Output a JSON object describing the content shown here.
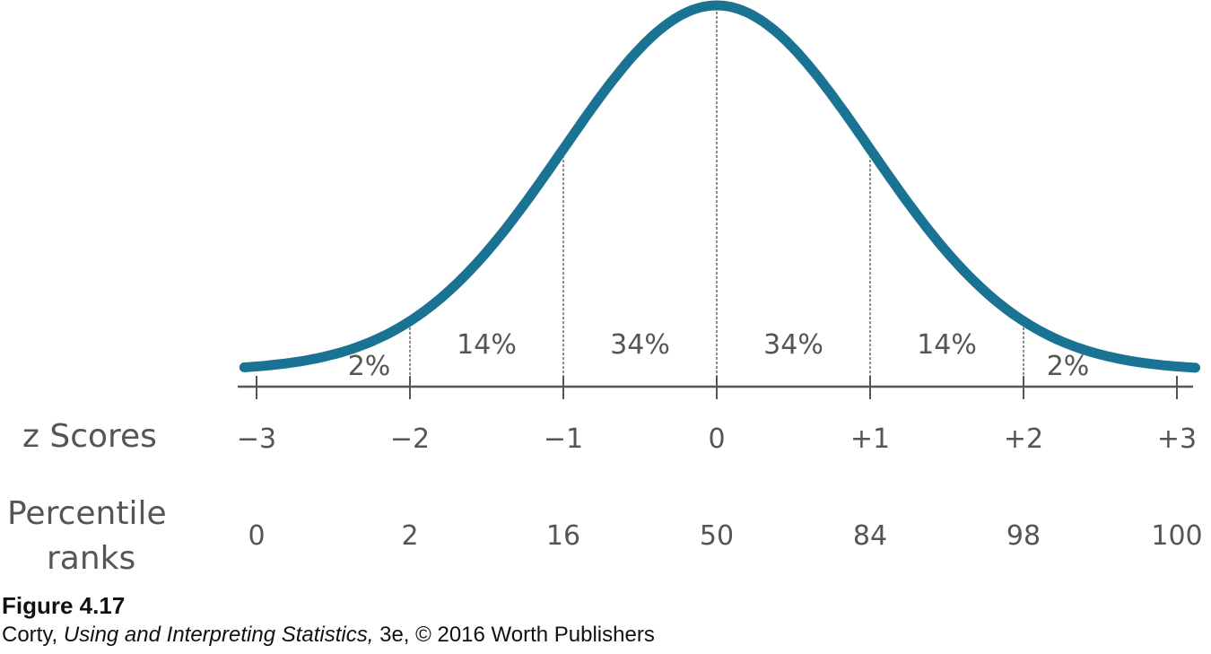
{
  "chart_data": {
    "type": "line",
    "curve": "normal distribution",
    "curve_color": "#1b7393",
    "x": [
      -3,
      -2,
      -1,
      0,
      1,
      2,
      3
    ],
    "x_tick_labels": [
      "−3",
      "−2",
      "−1",
      "0",
      "+1",
      "+2",
      "+3"
    ],
    "percentile_ranks": [
      "0",
      "2",
      "16",
      "50",
      "84",
      "98",
      "100"
    ],
    "area_percentages": [
      "2%",
      "14%",
      "34%",
      "34%",
      "14%",
      "2%"
    ],
    "row_labels": {
      "z": "z Scores",
      "percentile_line1": "Percentile",
      "percentile_line2": "ranks"
    },
    "xlim": [
      -3,
      3
    ]
  },
  "caption": {
    "figure_number": "Figure 4.17",
    "credit_author": "Corty, ",
    "credit_title": "Using and Interpreting Statistics,",
    "credit_rest": " 3e, © 2016 Worth Publishers"
  }
}
